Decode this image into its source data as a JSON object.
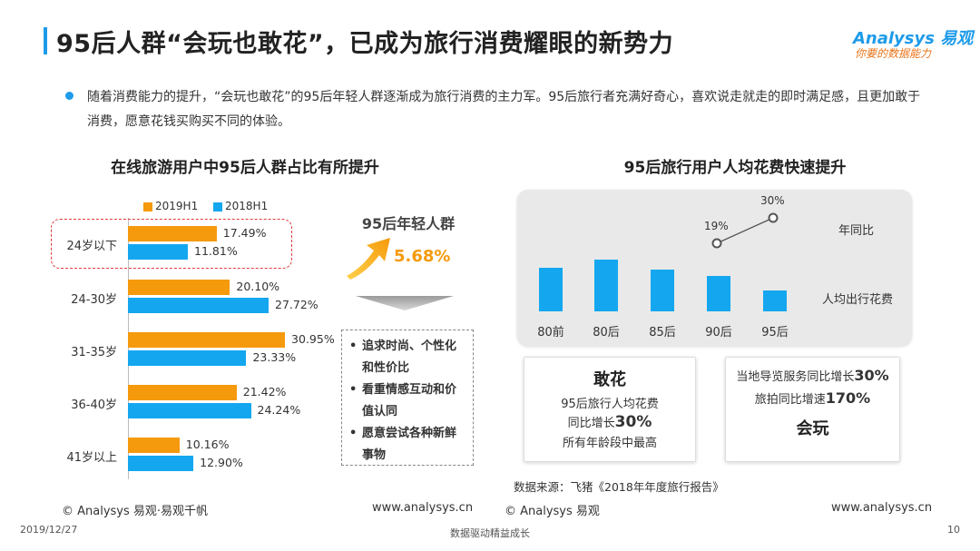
{
  "header": {
    "title": "95后人群“会玩也敢花”，已成为旅行消费耀眼的新势力",
    "logo_main": "Analysys 易观",
    "logo_sub": "你要的数据能力"
  },
  "intro": "随着消费能力的提升，“会玩也敢花”的95后年轻人群逐渐成为旅行消费的主力军。95后旅行者充满好奇心，喜欢说走就走的即时满足感，且更加敢于消费，愿意花钱买购买不同的体验。",
  "left_chart_title": "在线旅游用户中95后人群占比有所提升",
  "right_chart_title": "95后旅行用户人均花费快速提升",
  "chart_data": [
    {
      "type": "bar",
      "orientation": "horizontal",
      "categories": [
        "24岁以下",
        "24-30岁",
        "31-35岁",
        "36-40岁",
        "41岁以上"
      ],
      "series": [
        {
          "name": "2019H1",
          "color": "#f59a0c",
          "values": [
            17.49,
            20.1,
            30.95,
            21.42,
            10.16
          ],
          "labels": [
            "17.49%",
            "20.10%",
            "30.95%",
            "21.42%",
            "10.16%"
          ]
        },
        {
          "name": "2018H1",
          "color": "#14a7f0",
          "values": [
            11.81,
            27.72,
            23.33,
            24.24,
            12.9
          ],
          "labels": [
            "11.81%",
            "27.72%",
            "23.33%",
            "24.24%",
            "12.90%"
          ]
        }
      ],
      "xlim": [
        0,
        35
      ],
      "legend": "top",
      "grid": false
    },
    {
      "type": "bar",
      "categories": [
        "80前",
        "80后",
        "85后",
        "90后",
        "95后"
      ],
      "series": [
        {
          "name": "人均出行花费",
          "color": "#14a7f0",
          "values": [
            48,
            57,
            46,
            39,
            23
          ]
        }
      ],
      "line_series": {
        "name": "年同比",
        "points": [
          {
            "category": "90后",
            "value": 19,
            "label": "19%"
          },
          {
            "category": "95后",
            "value": 30,
            "label": "30%"
          }
        ]
      },
      "value_axis": false,
      "grid": false
    }
  ],
  "callout": {
    "label": "95后年轻人群",
    "value": "5.68%"
  },
  "traits": [
    "追求时尚、个性化和性价比",
    "看重情感互动和价值认同",
    "愿意尝试各种新鲜事物"
  ],
  "card_left": {
    "title": "敢花",
    "line1": "95后旅行人均花费",
    "line2_prefix": "同比增长",
    "line2_value": "30%",
    "line3": "所有年龄段中最高"
  },
  "card_right": {
    "line1_prefix": "当地导览服务同比增长",
    "line1_value": "30%",
    "line2_prefix": "旅拍同比增速",
    "line2_value": "170%",
    "title": "会玩"
  },
  "source": "数据来源：飞猪《2018年年度旅行报告》",
  "footer": {
    "left_copyright": "© Analysys 易观·易观千帆",
    "left_url": "www.analysys.cn",
    "right_copyright": "© Analysys 易观",
    "right_url": "www.analysys.cn",
    "date": "2019/12/27",
    "slogan": "数据驱动精益成长",
    "page": "10"
  },
  "colors": {
    "accent": "#1e9be9",
    "orange": "#f59a0c",
    "blue": "#14a7f0",
    "red": "#e23b3b"
  }
}
